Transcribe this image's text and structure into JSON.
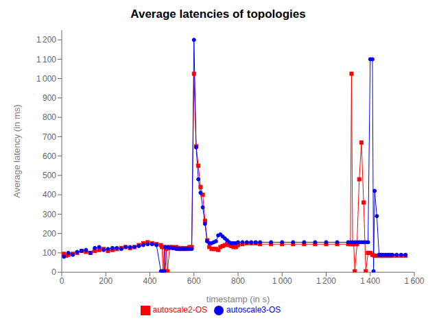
{
  "chart_data": {
    "type": "line",
    "title": "Average latencies of topologies",
    "xlabel": "timestamp (in s)",
    "ylabel": "Average latency (in ms)",
    "xlim": [
      0,
      1600
    ],
    "ylim": [
      0,
      1250
    ],
    "xticks": [
      0,
      200,
      400,
      600,
      800,
      {
        "value": 1000,
        "label": "1 000"
      },
      {
        "value": 1200,
        "label": "1 200"
      },
      {
        "value": 1400,
        "label": "1 400"
      },
      {
        "value": 1600,
        "label": "1 600"
      }
    ],
    "yticks": [
      0,
      100,
      200,
      300,
      400,
      500,
      600,
      700,
      800,
      900,
      {
        "value": 1000,
        "label": "1 000"
      },
      {
        "value": 1100,
        "label": "1 100"
      },
      {
        "value": 1200,
        "label": "1 200"
      }
    ],
    "grid": false,
    "legend": "bottom",
    "series": [
      {
        "name": "autoscale2-OS",
        "color": "#ff0000",
        "marker": "square",
        "x": [
          10,
          20,
          30,
          50,
          70,
          90,
          110,
          130,
          150,
          170,
          190,
          210,
          230,
          250,
          270,
          290,
          310,
          330,
          350,
          370,
          390,
          410,
          430,
          450,
          455,
          460,
          465,
          470,
          475,
          480,
          490,
          500,
          510,
          520,
          530,
          540,
          550,
          560,
          570,
          580,
          590,
          600,
          610,
          620,
          630,
          640,
          650,
          660,
          670,
          680,
          690,
          700,
          710,
          720,
          730,
          740,
          750,
          760,
          770,
          780,
          790,
          800,
          820,
          840,
          860,
          880,
          900,
          950,
          1000,
          1050,
          1100,
          1150,
          1200,
          1250,
          1300,
          1310,
          1315,
          1320,
          1325,
          1330,
          1340,
          1350,
          1360,
          1370,
          1380,
          1390,
          1400,
          1410,
          1420,
          1430,
          1440,
          1450,
          1460,
          1470,
          1480,
          1490,
          1500,
          1520,
          1540,
          1560
        ],
        "values": [
          95,
          85,
          90,
          95,
          100,
          110,
          105,
          100,
          110,
          115,
          120,
          110,
          115,
          120,
          125,
          130,
          125,
          130,
          140,
          150,
          155,
          150,
          145,
          140,
          130,
          5,
          130,
          5,
          120,
          5,
          130,
          130,
          125,
          130,
          125,
          120,
          125,
          120,
          125,
          130,
          130,
          1025,
          650,
          550,
          440,
          400,
          265,
          165,
          130,
          120,
          120,
          120,
          115,
          130,
          135,
          140,
          145,
          140,
          135,
          130,
          130,
          140,
          145,
          150,
          150,
          150,
          145,
          145,
          145,
          145,
          145,
          145,
          145,
          145,
          145,
          145,
          1025,
          145,
          145,
          5,
          145,
          480,
          670,
          360,
          5,
          100,
          100,
          90,
          85,
          85,
          85,
          85,
          85,
          85,
          85,
          85,
          85,
          85,
          85,
          85
        ]
      },
      {
        "name": "autoscale3-OS",
        "color": "#0000ff",
        "marker": "circle",
        "x": [
          10,
          30,
          50,
          70,
          90,
          110,
          130,
          150,
          170,
          190,
          210,
          230,
          250,
          270,
          290,
          310,
          330,
          350,
          370,
          390,
          410,
          430,
          450,
          455,
          460,
          465,
          470,
          480,
          490,
          500,
          510,
          520,
          530,
          540,
          550,
          560,
          570,
          580,
          590,
          600,
          610,
          620,
          630,
          640,
          650,
          660,
          670,
          680,
          690,
          700,
          710,
          720,
          730,
          740,
          750,
          760,
          770,
          780,
          790,
          800,
          820,
          840,
          860,
          880,
          900,
          950,
          1000,
          1050,
          1100,
          1150,
          1200,
          1250,
          1300,
          1310,
          1320,
          1330,
          1340,
          1350,
          1360,
          1370,
          1380,
          1390,
          1400,
          1410,
          1415,
          1420,
          1430,
          1440,
          1450,
          1460,
          1470,
          1480,
          1490,
          1500,
          1520,
          1540,
          1560
        ],
        "values": [
          80,
          100,
          90,
          105,
          110,
          115,
          100,
          125,
          130,
          115,
          120,
          125,
          125,
          120,
          130,
          130,
          130,
          135,
          140,
          145,
          145,
          140,
          5,
          5,
          5,
          5,
          130,
          130,
          125,
          125,
          125,
          120,
          120,
          120,
          120,
          120,
          120,
          120,
          120,
          1200,
          645,
          480,
          410,
          335,
          250,
          160,
          150,
          150,
          155,
          160,
          190,
          195,
          185,
          175,
          165,
          155,
          150,
          150,
          150,
          155,
          155,
          155,
          155,
          155,
          155,
          155,
          155,
          155,
          155,
          155,
          155,
          155,
          155,
          155,
          155,
          155,
          155,
          155,
          155,
          155,
          155,
          155,
          1100,
          1100,
          5,
          420,
          290,
          90,
          90,
          90,
          90,
          90,
          90,
          90,
          90,
          90,
          90
        ]
      }
    ]
  }
}
